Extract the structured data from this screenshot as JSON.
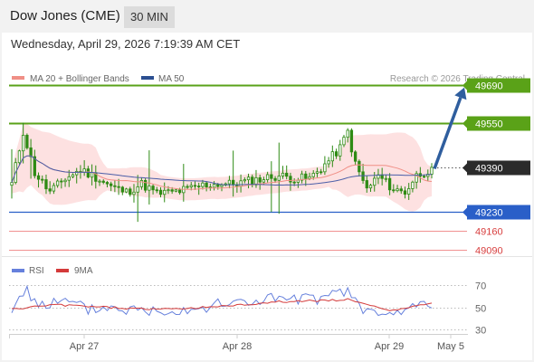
{
  "header": {
    "title": "Dow Jones (CME)",
    "interval": "30 MIN"
  },
  "timestamp": "Wednesday, April 29, 2026 7:19:39 AM CET",
  "colors": {
    "resistance": "#5aa218",
    "support": "#2a5fc8",
    "target_faint": "#f19191",
    "ma20": "#f08f86",
    "band_fill": "#fde1e1",
    "ma50": "#4a5ea8",
    "candle": "#2e8b14",
    "arrow": "#2f5e9e",
    "rsi": "#6680dc",
    "rsi_ma": "#d43a3a"
  },
  "chart_data": [
    {
      "type": "candlestick",
      "legend": [
        {
          "name": "MA 20 + Bollinger Bands",
          "color": "#f08f86"
        },
        {
          "name": "MA 50",
          "color": "#2b4f91"
        }
      ],
      "source": "Research © 2026 Trading Central",
      "ylim": [
        49045,
        49718
      ],
      "last_price": 49390,
      "levels": [
        {
          "value": 49690,
          "label": "49690",
          "kind": "resistance"
        },
        {
          "value": 49550,
          "label": "49550",
          "kind": "resistance"
        },
        {
          "value": 49390,
          "label": "49390",
          "kind": "current"
        },
        {
          "value": 49230,
          "label": "49230",
          "kind": "support"
        },
        {
          "value": 49160,
          "label": "49160",
          "kind": "target"
        },
        {
          "value": 49090,
          "label": "49090",
          "kind": "target"
        }
      ],
      "forecast_arrow": {
        "from": 49385,
        "to": 49680
      },
      "x_ticks": [
        "Apr 27",
        "Apr 28",
        "Apr 29",
        "May 5"
      ],
      "series_points": 111,
      "ohlc_anchors": [
        [
          0,
          49330
        ],
        [
          3,
          49520
        ],
        [
          6,
          49370
        ],
        [
          10,
          49300
        ],
        [
          14,
          49350
        ],
        [
          18,
          49380
        ],
        [
          22,
          49355
        ],
        [
          26,
          49320
        ],
        [
          30,
          49300
        ],
        [
          34,
          49330
        ],
        [
          38,
          49295
        ],
        [
          42,
          49300
        ],
        [
          46,
          49310
        ],
        [
          50,
          49325
        ],
        [
          54,
          49330
        ],
        [
          58,
          49330
        ],
        [
          62,
          49340
        ],
        [
          66,
          49350
        ],
        [
          70,
          49360
        ],
        [
          74,
          49350
        ],
        [
          78,
          49350
        ],
        [
          82,
          49400
        ],
        [
          86,
          49460
        ],
        [
          88,
          49520
        ],
        [
          90,
          49400
        ],
        [
          93,
          49310
        ],
        [
          96,
          49360
        ],
        [
          100,
          49310
        ],
        [
          103,
          49300
        ],
        [
          106,
          49360
        ],
        [
          110,
          49385
        ]
      ]
    },
    {
      "type": "line",
      "legend": [
        {
          "name": "RSI",
          "color": "#6680dc"
        },
        {
          "name": "9MA",
          "color": "#d43a3a"
        }
      ],
      "ylim": [
        20,
        80
      ],
      "y_ticks": [
        "70",
        "50",
        "30"
      ],
      "rsi_anchors": [
        [
          0,
          46
        ],
        [
          3,
          66
        ],
        [
          8,
          52
        ],
        [
          14,
          55
        ],
        [
          20,
          48
        ],
        [
          26,
          50
        ],
        [
          34,
          47
        ],
        [
          42,
          48
        ],
        [
          50,
          50
        ],
        [
          56,
          53
        ],
        [
          62,
          55
        ],
        [
          68,
          58
        ],
        [
          74,
          56
        ],
        [
          80,
          58
        ],
        [
          85,
          60
        ],
        [
          88,
          65
        ],
        [
          92,
          48
        ],
        [
          96,
          42
        ],
        [
          100,
          44
        ],
        [
          104,
          48
        ],
        [
          108,
          55
        ],
        [
          110,
          54
        ]
      ],
      "ma_anchors": [
        [
          0,
          48
        ],
        [
          10,
          52
        ],
        [
          20,
          51
        ],
        [
          30,
          49
        ],
        [
          40,
          48
        ],
        [
          50,
          50
        ],
        [
          60,
          52
        ],
        [
          70,
          55
        ],
        [
          80,
          56
        ],
        [
          88,
          57
        ],
        [
          94,
          51
        ],
        [
          100,
          47
        ],
        [
          106,
          51
        ],
        [
          110,
          53
        ]
      ]
    }
  ]
}
